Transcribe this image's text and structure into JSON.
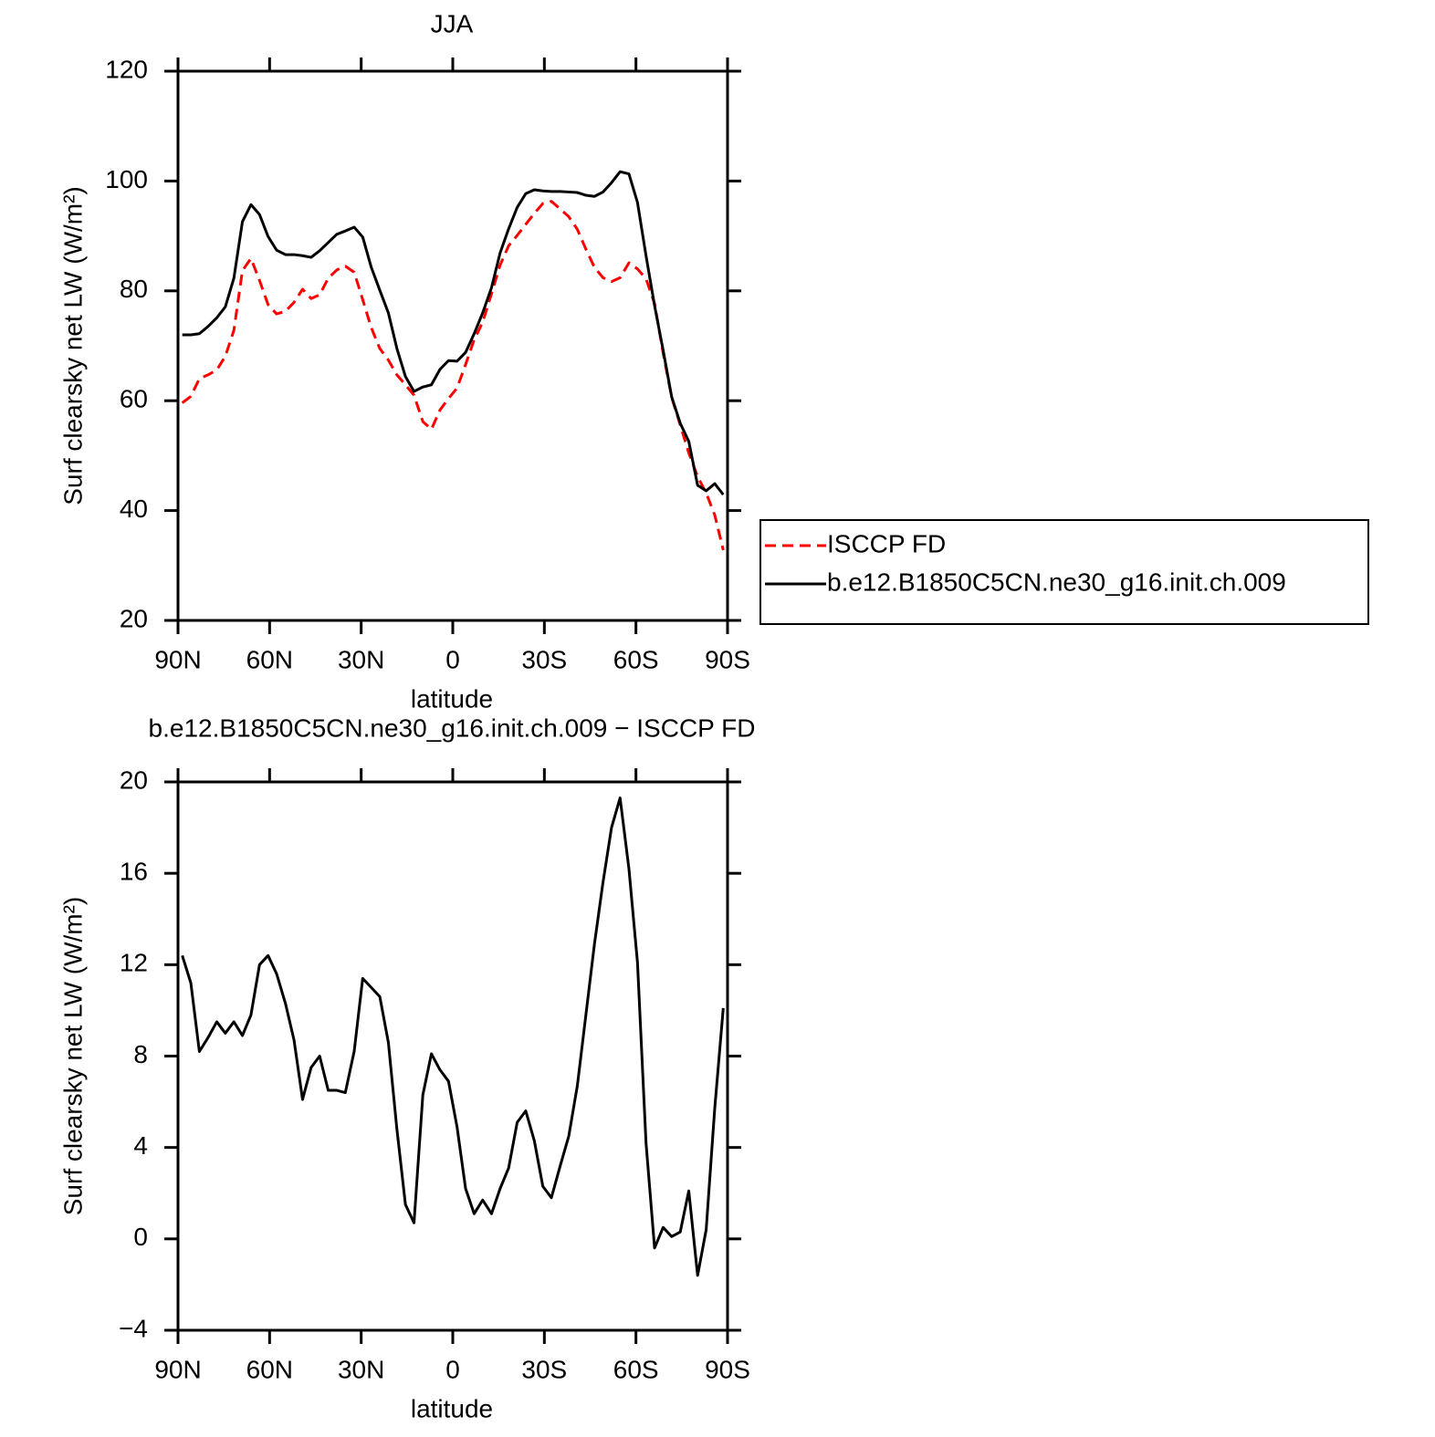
{
  "chart_data": [
    {
      "type": "line",
      "title": "JJA",
      "xlabel": "latitude",
      "ylabel": "Surf clearsky net LW (W/m²)",
      "x": [
        88.6,
        85.8,
        83.0,
        80.2,
        77.3,
        74.5,
        71.7,
        68.9,
        66.1,
        63.3,
        60.5,
        57.7,
        54.8,
        52.0,
        49.2,
        46.4,
        43.6,
        40.8,
        38.0,
        35.2,
        32.3,
        29.5,
        26.7,
        23.9,
        21.1,
        18.3,
        15.5,
        12.7,
        9.8,
        7.0,
        4.2,
        1.4,
        -1.4,
        -4.2,
        -7.0,
        -9.8,
        -12.7,
        -15.5,
        -18.3,
        -21.1,
        -23.9,
        -26.7,
        -29.5,
        -32.3,
        -35.2,
        -38.0,
        -40.8,
        -43.6,
        -46.4,
        -49.2,
        -52.0,
        -54.8,
        -57.7,
        -60.5,
        -63.3,
        -66.1,
        -68.9,
        -71.7,
        -74.5,
        -77.3,
        -80.2,
        -83.0,
        -85.8,
        -88.6
      ],
      "series": [
        {
          "name": "ISCCP FD",
          "color": "#ff0000",
          "linestyle": "dashed",
          "values": [
            59.6,
            60.8,
            64.0,
            64.7,
            65.6,
            68.1,
            72.8,
            83.7,
            85.9,
            81.9,
            77.5,
            75.8,
            76.3,
            77.9,
            80.3,
            78.6,
            79.3,
            82.3,
            83.8,
            84.5,
            83.4,
            78.4,
            73.3,
            69.5,
            67.4,
            64.7,
            62.9,
            61.0,
            56.2,
            54.8,
            58.3,
            60.4,
            62.3,
            66.6,
            71.1,
            74.3,
            79.5,
            84.7,
            88.2,
            90.1,
            92.1,
            94.1,
            95.9,
            96.3,
            94.9,
            93.5,
            91.2,
            87.6,
            84.3,
            82.4,
            81.7,
            82.4,
            85.1,
            84.0,
            82.2,
            77.7,
            68.7,
            60.6,
            55.6,
            50.5,
            46.2,
            43.2,
            39.2,
            32.8
          ]
        },
        {
          "name": "b.e12.B1850C5CN.ne30_g16.init.ch.009",
          "color": "#000000",
          "linestyle": "solid",
          "values": [
            72.0,
            72.0,
            72.2,
            73.5,
            75.1,
            77.1,
            82.3,
            92.6,
            95.7,
            93.9,
            89.9,
            87.4,
            86.6,
            86.6,
            86.4,
            86.1,
            87.3,
            88.8,
            90.3,
            90.9,
            91.6,
            89.8,
            84.3,
            80.1,
            76.0,
            69.5,
            64.4,
            61.7,
            62.5,
            62.9,
            65.7,
            67.3,
            67.2,
            68.8,
            72.2,
            76.0,
            80.6,
            86.9,
            91.3,
            95.2,
            97.7,
            98.4,
            98.2,
            98.1,
            98.1,
            98.0,
            97.9,
            97.4,
            97.2,
            98.0,
            99.7,
            101.7,
            101.3,
            96.1,
            86.4,
            77.3,
            69.2,
            60.7,
            55.9,
            52.6,
            44.6,
            43.6,
            44.9,
            42.9
          ]
        }
      ],
      "xlim": [
        90,
        -90
      ],
      "xticks": [
        {
          "value": 90,
          "label": "90N"
        },
        {
          "value": 60,
          "label": "60N"
        },
        {
          "value": 30,
          "label": "30N"
        },
        0,
        {
          "value": -30,
          "label": "30S"
        },
        {
          "value": -60,
          "label": "60S"
        },
        {
          "value": -90,
          "label": "90S"
        }
      ],
      "ylim": [
        20,
        120
      ],
      "yticks": [
        20,
        40,
        60,
        80,
        100,
        120
      ],
      "legend": "right"
    },
    {
      "type": "line",
      "title": "b.e12.B1850C5CN.ne30_g16.init.ch.009 − ISCCP FD",
      "xlabel": "latitude",
      "ylabel": "Surf clearsky net LW (W/m²)",
      "x": [
        88.6,
        85.8,
        83.0,
        80.2,
        77.3,
        74.5,
        71.7,
        68.9,
        66.1,
        63.3,
        60.5,
        57.7,
        54.8,
        52.0,
        49.2,
        46.4,
        43.6,
        40.8,
        38.0,
        35.2,
        32.3,
        29.5,
        26.7,
        23.9,
        21.1,
        18.3,
        15.5,
        12.7,
        9.8,
        7.0,
        4.2,
        1.4,
        -1.4,
        -4.2,
        -7.0,
        -9.8,
        -12.7,
        -15.5,
        -18.3,
        -21.1,
        -23.9,
        -26.7,
        -29.5,
        -32.3,
        -35.2,
        -38.0,
        -40.8,
        -43.6,
        -46.4,
        -49.2,
        -52.0,
        -54.8,
        -57.7,
        -60.5,
        -63.3,
        -66.1,
        -68.9,
        -71.7,
        -74.5,
        -77.3,
        -80.2,
        -83.0,
        -85.8,
        -88.6
      ],
      "values": [
        12.4,
        11.2,
        8.2,
        8.8,
        9.5,
        9.0,
        9.5,
        8.9,
        9.8,
        12.0,
        12.4,
        11.6,
        10.3,
        8.7,
        6.1,
        7.5,
        8.0,
        6.5,
        6.5,
        6.4,
        8.2,
        11.4,
        11.0,
        10.6,
        8.6,
        4.8,
        1.5,
        0.7,
        6.3,
        8.1,
        7.4,
        6.9,
        4.9,
        2.2,
        1.1,
        1.7,
        1.1,
        2.2,
        3.1,
        5.1,
        5.6,
        4.3,
        2.3,
        1.8,
        3.2,
        4.5,
        6.7,
        9.8,
        12.9,
        15.6,
        18.0,
        19.3,
        16.2,
        12.1,
        4.2,
        -0.4,
        0.5,
        0.1,
        0.3,
        2.1,
        -1.6,
        0.4,
        5.7,
        10.1
      ],
      "color": "#000000",
      "xlim": [
        90,
        -90
      ],
      "xticks": [
        {
          "value": 90,
          "label": "90N"
        },
        {
          "value": 60,
          "label": "60N"
        },
        {
          "value": 30,
          "label": "30N"
        },
        0,
        {
          "value": -30,
          "label": "30S"
        },
        {
          "value": -60,
          "label": "60S"
        },
        {
          "value": -90,
          "label": "90S"
        }
      ],
      "ylim": [
        -4,
        20
      ],
      "yticks": [
        {
          "value": -4,
          "label": "−4"
        },
        0,
        4,
        8,
        12,
        16,
        20
      ]
    }
  ]
}
